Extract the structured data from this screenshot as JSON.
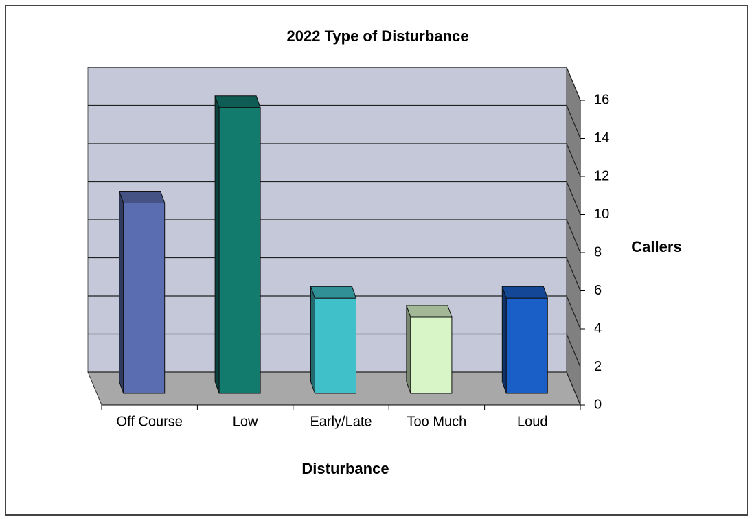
{
  "chart_data": {
    "type": "bar3d",
    "title": "2022 Type of Disturbance",
    "categories": [
      "Off Course",
      "Low",
      "Early/Late",
      "Too Much",
      "Loud"
    ],
    "values": [
      10,
      15,
      5,
      4,
      5
    ],
    "colors": [
      "#5a6db0",
      "#137a6e",
      "#40c0c8",
      "#d8f5c8",
      "#1a5fc8"
    ],
    "x_label": "Disturbance",
    "y_label": "Callers",
    "ylim": [
      0,
      16
    ],
    "yticks": [
      0,
      2,
      4,
      6,
      8,
      10,
      12,
      14,
      16
    ],
    "grid": true
  }
}
